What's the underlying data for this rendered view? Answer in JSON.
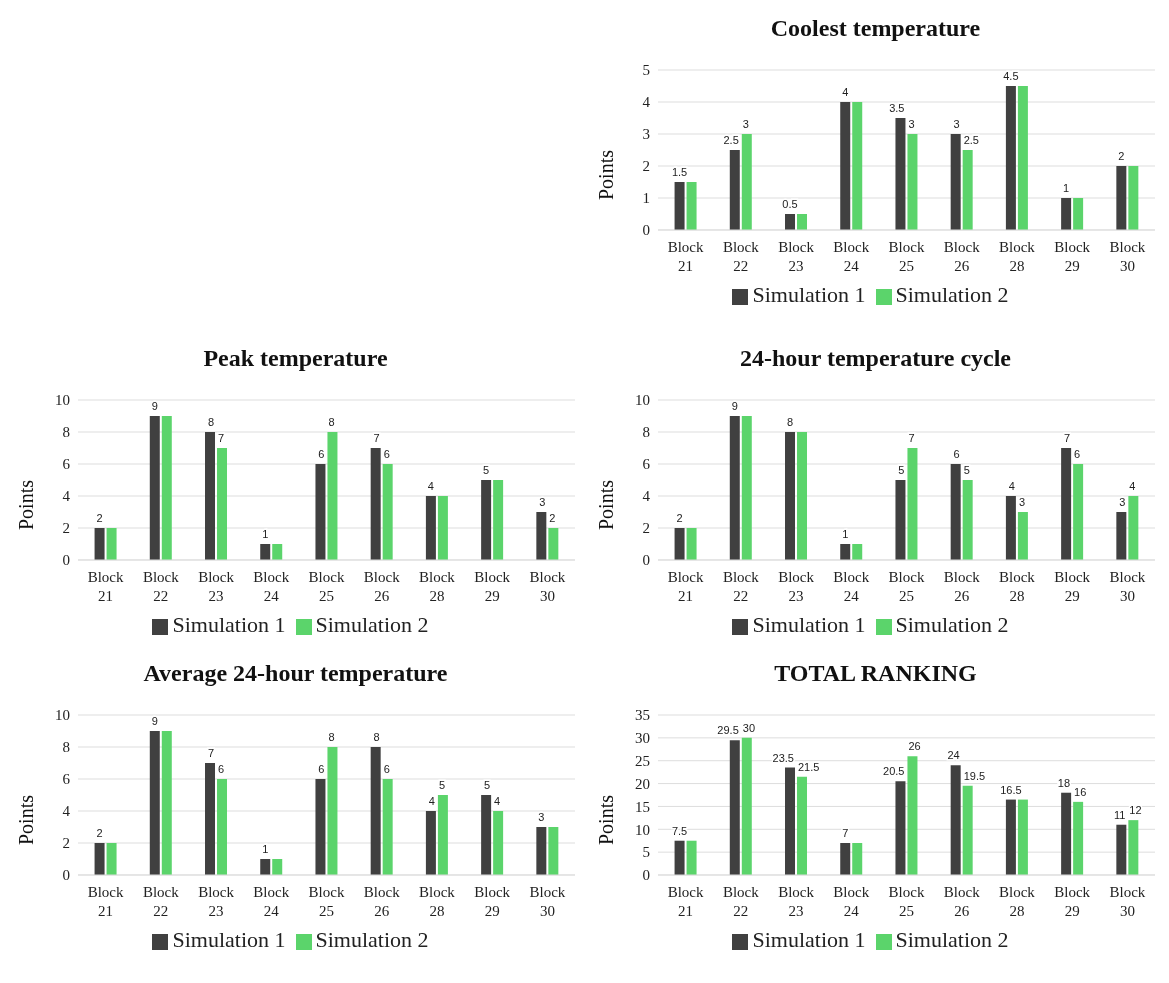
{
  "chart_data": [
    {
      "type": "bar",
      "title": "Coolest temperature",
      "ylabel": "Points",
      "categories": [
        "Block 21",
        "Block 22",
        "Block 23",
        "Block 24",
        "Block 25",
        "Block 26",
        "Block 28",
        "Block 29",
        "Block 30"
      ],
      "series": [
        {
          "name": "Simulation 1",
          "color": "#404040",
          "values": [
            1.5,
            2.5,
            0.5,
            4,
            3.5,
            3,
            4.5,
            1,
            2
          ],
          "value_labels": [
            "1.5",
            "2.5",
            "0.5",
            "4",
            "3.5",
            "3",
            "4.5",
            "1",
            "2"
          ]
        },
        {
          "name": "Simulation 2",
          "color": "#5bd46b",
          "values": [
            1.5,
            3,
            0.5,
            4,
            3,
            2.5,
            4.5,
            1,
            2
          ],
          "value_labels": [
            null,
            "3",
            null,
            null,
            "3",
            "2.5",
            null,
            null,
            null
          ]
        }
      ],
      "ylim": [
        0,
        5
      ],
      "yticks": [
        0,
        1,
        2,
        3,
        4,
        5
      ],
      "grid": "y",
      "legend": "bottom"
    },
    {
      "type": "bar",
      "title": "Peak temperature",
      "ylabel": "Points",
      "categories": [
        "Block 21",
        "Block 22",
        "Block 23",
        "Block 24",
        "Block 25",
        "Block 26",
        "Block 28",
        "Block 29",
        "Block 30"
      ],
      "series": [
        {
          "name": "Simulation 1",
          "color": "#404040",
          "values": [
            2,
            9,
            8,
            1,
            6,
            7,
            4,
            5,
            3
          ],
          "value_labels": [
            "2",
            "9",
            "8",
            "1",
            "6",
            "7",
            "4",
            "5",
            "3"
          ]
        },
        {
          "name": "Simulation 2",
          "color": "#5bd46b",
          "values": [
            2,
            9,
            7,
            1,
            8,
            6,
            4,
            5,
            2
          ],
          "value_labels": [
            null,
            null,
            "7",
            null,
            "8",
            "6",
            null,
            null,
            "2"
          ]
        }
      ],
      "ylim": [
        0,
        10
      ],
      "yticks": [
        0,
        2,
        4,
        6,
        8,
        10
      ],
      "grid": "y",
      "legend": "bottom"
    },
    {
      "type": "bar",
      "title": "24-hour temperature cycle",
      "ylabel": "Points",
      "categories": [
        "Block 21",
        "Block 22",
        "Block 23",
        "Block 24",
        "Block 25",
        "Block 26",
        "Block 28",
        "Block 29",
        "Block 30"
      ],
      "series": [
        {
          "name": "Simulation 1",
          "color": "#404040",
          "values": [
            2,
            9,
            8,
            1,
            5,
            6,
            4,
            7,
            3
          ],
          "value_labels": [
            "2",
            "9",
            "8",
            "1",
            "5",
            "6",
            "4",
            "7",
            "3"
          ]
        },
        {
          "name": "Simulation 2",
          "color": "#5bd46b",
          "values": [
            2,
            9,
            8,
            1,
            7,
            5,
            3,
            6,
            4
          ],
          "value_labels": [
            null,
            null,
            null,
            null,
            "7",
            "5",
            "3",
            "6",
            "4"
          ]
        }
      ],
      "ylim": [
        0,
        10
      ],
      "yticks": [
        0,
        2,
        4,
        6,
        8,
        10
      ],
      "grid": "y",
      "legend": "bottom"
    },
    {
      "type": "bar",
      "title": "Average 24-hour temperature",
      "ylabel": "Points",
      "categories": [
        "Block 21",
        "Block 22",
        "Block 23",
        "Block 24",
        "Block 25",
        "Block 26",
        "Block 28",
        "Block 29",
        "Block 30"
      ],
      "series": [
        {
          "name": "Simulation 1",
          "color": "#404040",
          "values": [
            2,
            9,
            7,
            1,
            6,
            8,
            4,
            5,
            3
          ],
          "value_labels": [
            "2",
            "9",
            "7",
            "1",
            "6",
            "8",
            "4",
            "5",
            "3"
          ]
        },
        {
          "name": "Simulation 2",
          "color": "#5bd46b",
          "values": [
            2,
            9,
            6,
            1,
            8,
            6,
            5,
            4,
            3
          ],
          "value_labels": [
            null,
            null,
            "6",
            null,
            "8",
            "6",
            "5",
            "4",
            null
          ]
        }
      ],
      "ylim": [
        0,
        10
      ],
      "yticks": [
        0,
        2,
        4,
        6,
        8,
        10
      ],
      "grid": "y",
      "legend": "bottom"
    },
    {
      "type": "bar",
      "title": "TOTAL RANKING",
      "ylabel": "Points",
      "categories": [
        "Block 21",
        "Block 22",
        "Block 23",
        "Block 24",
        "Block 25",
        "Block 26",
        "Block 28",
        "Block 29",
        "Block 30"
      ],
      "series": [
        {
          "name": "Simulation 1",
          "color": "#404040",
          "values": [
            7.5,
            29.5,
            23.5,
            7,
            20.5,
            24,
            16.5,
            18,
            11
          ],
          "value_labels": [
            "7.5",
            "29.5",
            "23.5",
            "7",
            "20.5",
            "24",
            "16.5",
            "18",
            "11"
          ]
        },
        {
          "name": "Simulation 2",
          "color": "#5bd46b",
          "values": [
            7.5,
            30,
            21.5,
            7,
            26,
            19.5,
            16.5,
            16,
            12
          ],
          "value_labels": [
            null,
            "30",
            "21.5",
            null,
            "26",
            "19.5",
            null,
            "16",
            "12"
          ]
        }
      ],
      "ylim": [
        0,
        35
      ],
      "yticks": [
        0,
        5,
        10,
        15,
        20,
        25,
        30,
        35
      ],
      "grid": "y",
      "legend": "bottom"
    }
  ]
}
